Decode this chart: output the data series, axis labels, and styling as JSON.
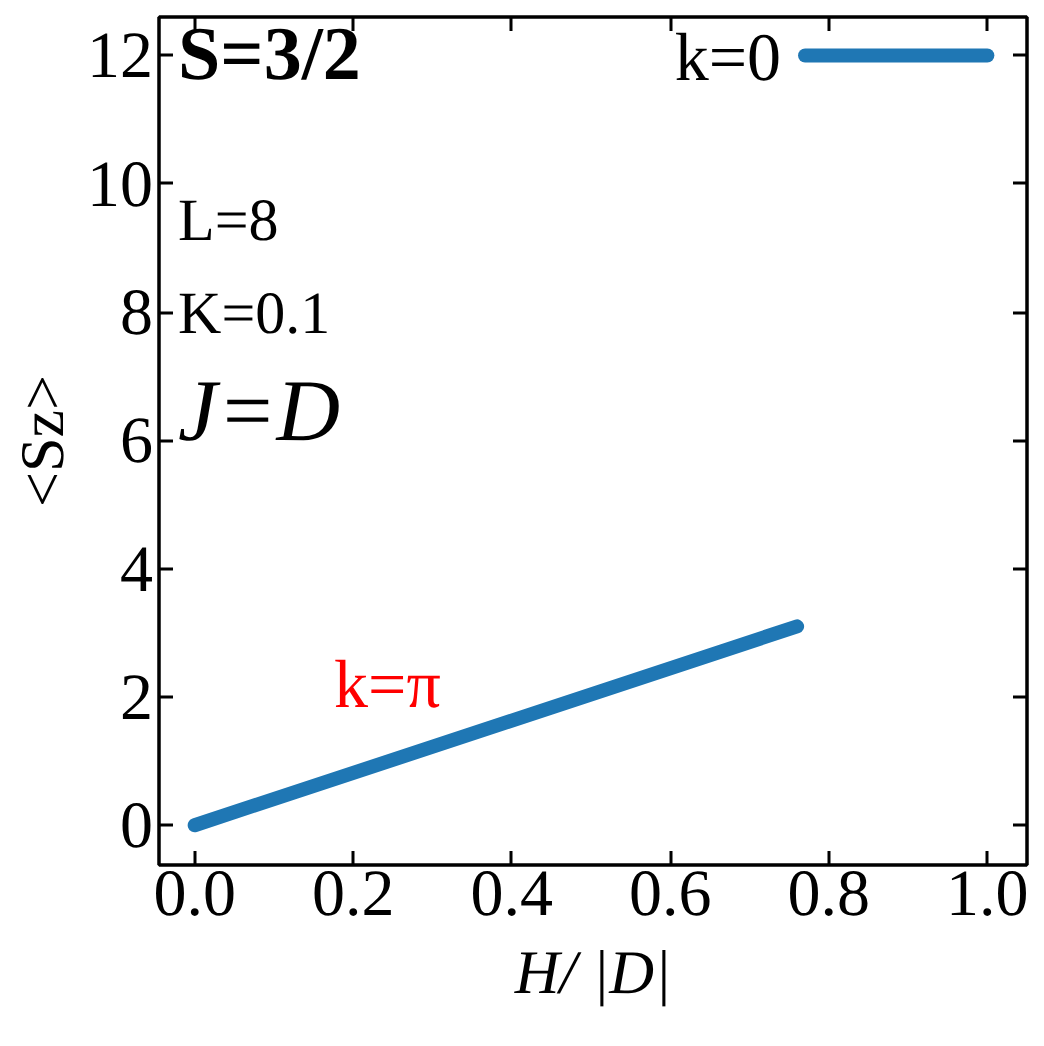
{
  "chart_data": {
    "type": "line",
    "xlabel": "H/ |D|",
    "ylabel": "<Sz>",
    "xlim": [
      -0.045,
      1.05
    ],
    "ylim": [
      -0.62,
      12.6
    ],
    "xticks": [
      {
        "value": 0,
        "label": "0.0"
      },
      0.2,
      0.4,
      0.6,
      0.8,
      {
        "value": 1,
        "label": "1.0"
      }
    ],
    "yticks": [
      0,
      2,
      4,
      6,
      8,
      10,
      12
    ],
    "grid": false,
    "line_style": "solid",
    "annotations": [
      "S=3/2",
      "L=8",
      "K=0.1",
      "J=D"
    ],
    "series": [
      {
        "name": "k=π",
        "color": "#1f77b4",
        "x": [
          0,
          0.76
        ],
        "values": [
          0,
          3.1
        ]
      },
      {
        "name": "k=0",
        "color": "#1f77b4",
        "x": [
          0.77,
          1.0
        ],
        "values": [
          12,
          12
        ]
      }
    ]
  }
}
